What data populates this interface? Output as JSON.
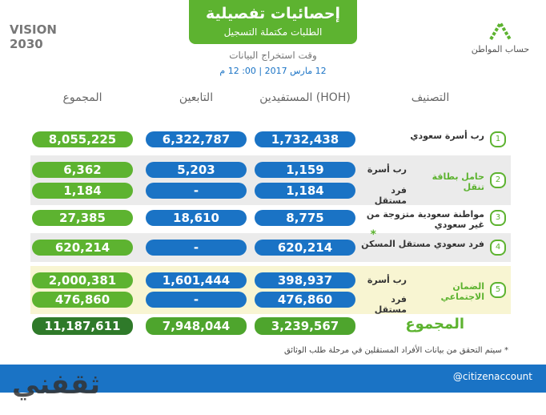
{
  "header": {
    "title": "إحصائيات تفصيلية",
    "subtitle": "الطلبات مكتملة التسجيل",
    "time_label": "وقت استخراج البيانات",
    "time": "12 مارس 2017 | 00: 12 م",
    "vision_logo": "VISION 2030",
    "brand_logo": "حساب المواطن"
  },
  "table": {
    "columns": [
      "التصنيف",
      "المستفيدين (HOH)",
      "التابعين",
      "المجموع"
    ],
    "rows": [
      {
        "number": "1",
        "label": "رب أسرة سعودي",
        "entries": [
          {
            "values": [
              "1,732,438",
              "6,322,787",
              "8,055,225"
            ]
          }
        ]
      },
      {
        "number": "2",
        "label": "حامل بطاقة تنقل",
        "entries": [
          {
            "sublabel": "رب أسرة",
            "values": [
              "1,159",
              "5,203",
              "6,362"
            ]
          },
          {
            "sublabel": "فرد مستقل",
            "values": [
              "1,184",
              "-",
              "1,184"
            ]
          }
        ]
      },
      {
        "number": "3",
        "label": "مواطنة سعودية متزوجة من غير سعودي",
        "entries": [
          {
            "values": [
              "8,775",
              "18,610",
              "27,385"
            ]
          }
        ]
      },
      {
        "number": "4",
        "label": "فرد سعودي مستقل المسكن",
        "marker": "*",
        "entries": [
          {
            "values": [
              "620,214",
              "-",
              "620,214"
            ]
          }
        ]
      },
      {
        "number": "5",
        "label": "الضمان الاجتماعي",
        "entries": [
          {
            "sublabel": "رب أسرة",
            "values": [
              "398,937",
              "1,601,444",
              "2,000,381"
            ]
          },
          {
            "sublabel": "فرد مستقل",
            "values": [
              "476,860",
              "-",
              "476,860"
            ]
          }
        ]
      }
    ],
    "total": {
      "label": "المجموع",
      "values": [
        "3,239,567",
        "7,948,044",
        "11,187,611"
      ]
    }
  },
  "footnote": "* سيتم التحقق من بيانات الأفراد المستقلين في مرحلة طلب الوثائق",
  "footer": {
    "handle": "@citizenaccount",
    "watermark": "ثقفني"
  }
}
